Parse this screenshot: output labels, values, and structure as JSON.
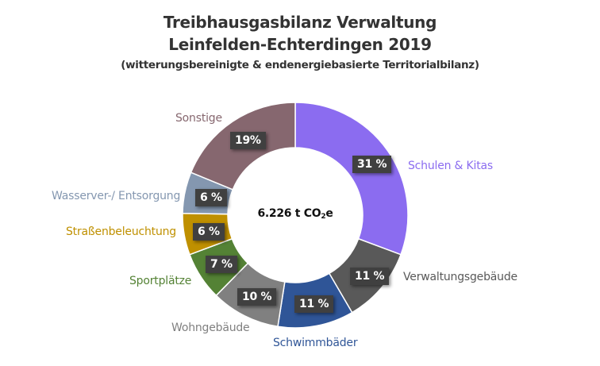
{
  "chart_data": {
    "type": "pie",
    "variant": "donut",
    "title": "Treibhausgasbilanz Verwaltung Leinfelden-Echterdingen 2019",
    "subtitle": "(witterungsbereinigte & endenergiebasierte Territorialbilanz)",
    "center_label": "6.226 t CO2e",
    "total_value": 6226,
    "unit": "t CO2e",
    "categories": [
      "Schulen & Kitas",
      "Verwaltungsgebäude",
      "Schwimmbäder",
      "Wohngebäude",
      "Sportplätze",
      "Straßenbeleuchtung",
      "Wasserver-/ Entsorgung",
      "Sonstige"
    ],
    "values": [
      31,
      11,
      11,
      10,
      7,
      6,
      6,
      19
    ],
    "value_labels": [
      "31 %",
      "11 %",
      "11 %",
      "10 %",
      "7 %",
      "6 %",
      "6 %",
      "19%"
    ],
    "colors": [
      "#8B6CF0",
      "#595959",
      "#2F5597",
      "#808080",
      "#548235",
      "#BF9000",
      "#8497B0",
      "#86676F"
    ],
    "legend": "none (category labels placed outside segments)"
  },
  "title": {
    "line1": "Treibhausgasbilanz Verwaltung",
    "line2": "Leinfelden-Echterdingen 2019",
    "line3": "(witterungsbereinigte & endenergiebasierte Territorialbilanz)"
  },
  "center": {
    "prefix": "6.226 t CO",
    "sub": "2",
    "suffix": "e"
  },
  "segments": [
    {
      "label": "Schulen & Kitas",
      "pct": "31 %",
      "color": "#8B6CF0"
    },
    {
      "label": "Verwaltungsgebäude",
      "pct": "11 %",
      "color": "#595959"
    },
    {
      "label": "Schwimmbäder",
      "pct": "11 %",
      "color": "#2F5597"
    },
    {
      "label": "Wohngebäude",
      "pct": "10 %",
      "color": "#808080"
    },
    {
      "label": "Sportplätze",
      "pct": "7 %",
      "color": "#548235"
    },
    {
      "label": "Straßenbeleuchtung",
      "pct": "6 %",
      "color": "#BF9000"
    },
    {
      "label": "Wasserver-/ Entsorgung",
      "pct": "6 %",
      "color": "#8497B0"
    },
    {
      "label": "Sonstige",
      "pct": "19%",
      "color": "#86676F"
    }
  ]
}
